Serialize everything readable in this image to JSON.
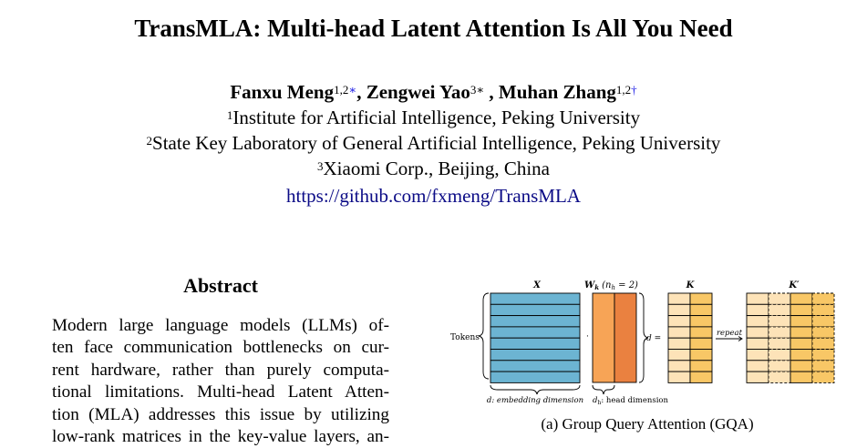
{
  "paper": {
    "title": "TransMLA: Multi-head Latent Attention Is All You Need",
    "authors": [
      {
        "name": "Fanxu Meng",
        "marks": "1,2",
        "symbol": "∗",
        "sep": ", "
      },
      {
        "name": "Zengwei Yao",
        "marks": "3∗",
        "symbol": "",
        "sep": " , "
      },
      {
        "name": "Muhan Zhang",
        "marks": "1,2",
        "symbol": "†",
        "sep": ""
      }
    ],
    "affiliations": [
      {
        "mark": "1",
        "text": "Institute for Artificial Intelligence, Peking University"
      },
      {
        "mark": "2",
        "text": "State Key Laboratory of General Artificial Intelligence, Peking University"
      },
      {
        "mark": "3",
        "text": "Xiaomi Corp., Beijing, China"
      }
    ],
    "link": "https://github.com/fxmeng/TransMLA"
  },
  "abstract": {
    "heading": "Abstract",
    "lines": [
      "Modern large language models (LLMs) of-",
      "ten face communication bottlenecks on cur-",
      "rent hardware, rather than purely computa-",
      "tional limitations.  Multi-head Latent Atten-",
      "tion (MLA) addresses this issue by utilizing",
      "low-rank matrices in the key-value layers, an-"
    ]
  },
  "figure": {
    "labels": {
      "x": "X",
      "wk": "W",
      "wk_sub": "k",
      "wk_param": "(n",
      "wk_param_sub": "h",
      "wk_param_tail": " = 2)",
      "k": "K",
      "kprime": "K′",
      "tokens": "Tokens",
      "dot": "·",
      "d_eq": "d =",
      "repeat": "repeat",
      "embed": "d: embedding dimension",
      "head": "d",
      "head_sub": "h",
      "head_tail": ": head dimension"
    },
    "caption": "(a) Group Query Attention (GQA)",
    "colors": {
      "x_fill": "#6cb4d2",
      "wk_left": "#f7a456",
      "wk_right": "#ea8140",
      "k_light": "#fde3b8",
      "k_dark": "#f8c766"
    }
  }
}
